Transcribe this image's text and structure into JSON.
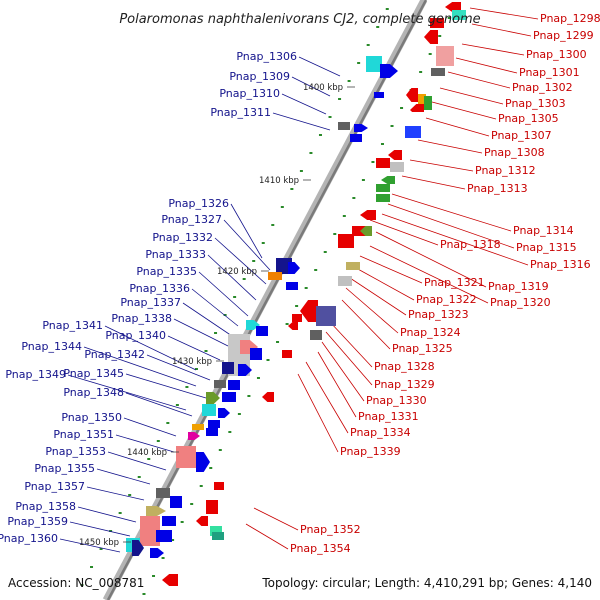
{
  "title": "Polaromonas naphthalenivorans CJ2, complete genome",
  "accession": "Accession: NC_008781",
  "topology": "Topology: circular; Length: 4,410,291 bp; Genes: 4,140",
  "colors": {
    "left_label": "#14148c",
    "right_label": "#c80000",
    "backbone": "#8c8c8c",
    "tick": "#2a8a2a",
    "forward": "#e60000",
    "reverse": "#0000e6"
  },
  "kbp_ticks": [
    "1400 kbp",
    "1410 kbp",
    "1420 kbp",
    "1430 kbp",
    "1440 kbp",
    "1450 kbp"
  ],
  "left_labels": [
    "Pnap_1306",
    "Pnap_1309",
    "Pnap_1310",
    "Pnap_1311",
    "Pnap_1326",
    "Pnap_1327",
    "Pnap_1332",
    "Pnap_1333",
    "Pnap_1335",
    "Pnap_1336",
    "Pnap_1337",
    "Pnap_1338",
    "Pnap_1341",
    "Pnap_1340",
    "Pnap_1344",
    "Pnap_1342",
    "Pnap_1349",
    "Pnap_1345",
    "Pnap_1348",
    "Pnap_1350",
    "Pnap_1351",
    "Pnap_1353",
    "Pnap_1355",
    "Pnap_1357",
    "Pnap_1358",
    "Pnap_1359",
    "Pnap_1360"
  ],
  "right_labels": [
    "Pnap_1298",
    "Pnap_1299",
    "Pnap_1300",
    "Pnap_1301",
    "Pnap_1302",
    "Pnap_1303",
    "Pnap_1305",
    "Pnap_1307",
    "Pnap_1308",
    "Pnap_1312",
    "Pnap_1313",
    "Pnap_1314",
    "Pnap_1315",
    "Pnap_1316",
    "Pnap_1318",
    "Pnap_1319",
    "Pnap_1320",
    "Pnap_1321",
    "Pnap_1322",
    "Pnap_1323",
    "Pnap_1324",
    "Pnap_1325",
    "Pnap_1328",
    "Pnap_1329",
    "Pnap_1330",
    "Pnap_1331",
    "Pnap_1334",
    "Pnap_1339",
    "Pnap_1352",
    "Pnap_1354"
  ]
}
